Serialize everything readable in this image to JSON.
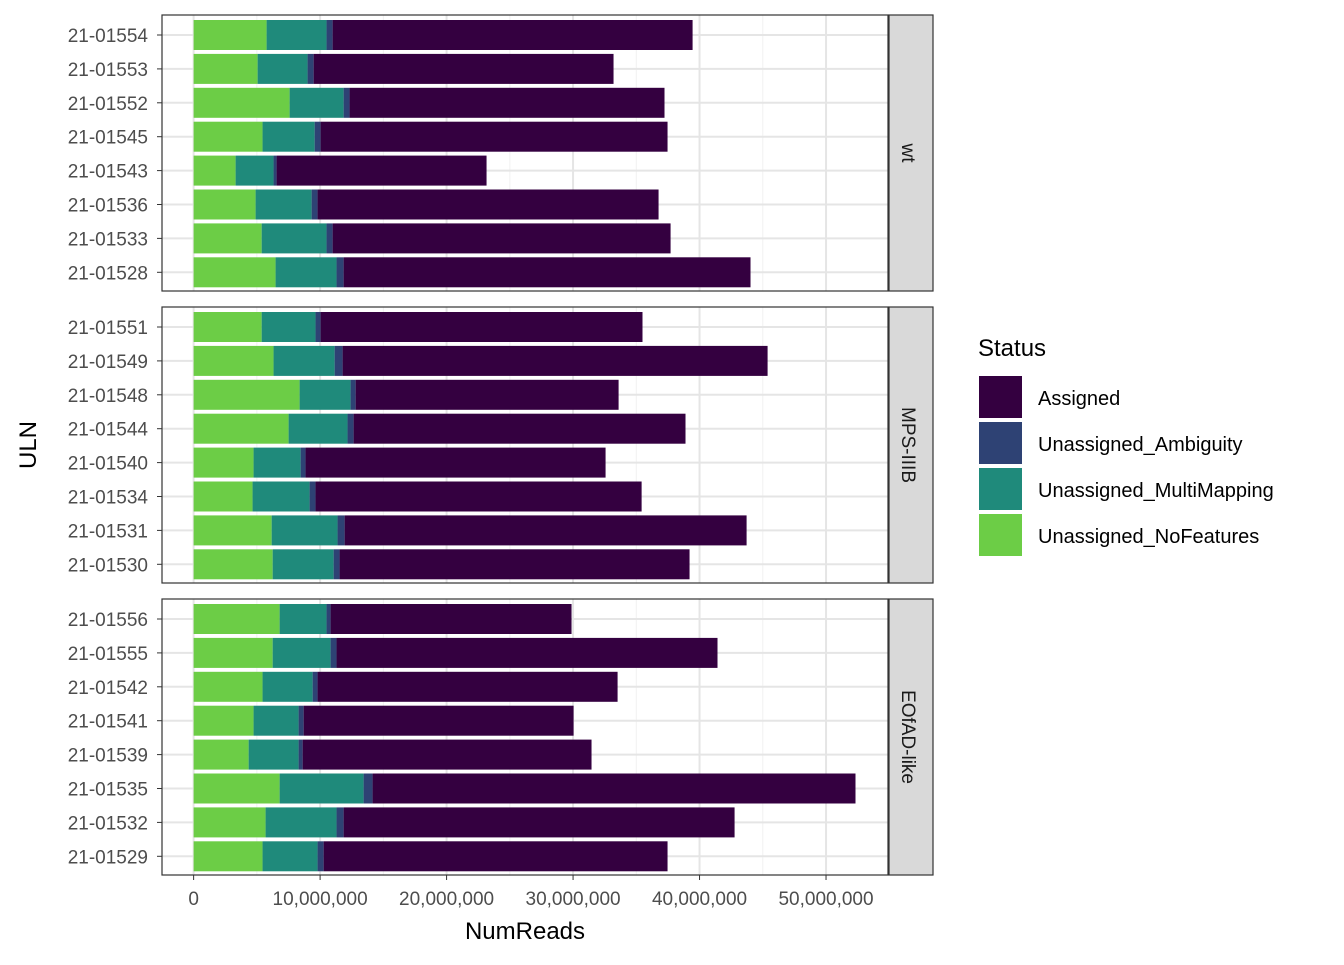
{
  "chart_data": {
    "type": "bar",
    "orientation": "horizontal",
    "stacked": true,
    "xlabel": "NumReads",
    "ylabel": "ULN",
    "xlim": [
      -2500000,
      54900000
    ],
    "xticks": [
      0,
      10000000,
      20000000,
      30000000,
      40000000,
      50000000
    ],
    "xtick_labels": [
      "0",
      "10,000,000",
      "20,000,000",
      "30,000,000",
      "40,000,000",
      "50,000,000"
    ],
    "grid": true,
    "legend": {
      "title": "Status",
      "placement": "right",
      "entries": [
        "Assigned",
        "Unassigned_Ambiguity",
        "Unassigned_MultiMapping",
        "Unassigned_NoFeatures"
      ]
    },
    "colors": {
      "Assigned": "#340040",
      "Unassigned_Ambiguity": "#2E4274",
      "Unassigned_MultiMapping": "#1F8A7B",
      "Unassigned_NoFeatures": "#6CCD46"
    },
    "stack_order": [
      "Unassigned_NoFeatures",
      "Unassigned_MultiMapping",
      "Unassigned_Ambiguity",
      "Assigned"
    ],
    "panels": [
      {
        "label": "wt",
        "rows": [
          {
            "uln": "21-01554",
            "Unassigned_NoFeatures": 5770000,
            "Unassigned_MultiMapping": 4740000,
            "Unassigned_Ambiguity": 480000,
            "Assigned": 28460000
          },
          {
            "uln": "21-01553",
            "Unassigned_NoFeatures": 5060000,
            "Unassigned_MultiMapping": 3950000,
            "Unassigned_Ambiguity": 480000,
            "Assigned": 23710000
          },
          {
            "uln": "21-01552",
            "Unassigned_NoFeatures": 7590000,
            "Unassigned_MultiMapping": 4270000,
            "Unassigned_Ambiguity": 470000,
            "Assigned": 24900000
          },
          {
            "uln": "21-01545",
            "Unassigned_NoFeatures": 5450000,
            "Unassigned_MultiMapping": 4120000,
            "Unassigned_Ambiguity": 470000,
            "Assigned": 27430000
          },
          {
            "uln": "21-01543",
            "Unassigned_NoFeatures": 3320000,
            "Unassigned_MultiMapping": 3000000,
            "Unassigned_Ambiguity": 240000,
            "Assigned": 16600000
          },
          {
            "uln": "21-01536",
            "Unassigned_NoFeatures": 4900000,
            "Unassigned_MultiMapping": 4430000,
            "Unassigned_Ambiguity": 470000,
            "Assigned": 26960000
          },
          {
            "uln": "21-01533",
            "Unassigned_NoFeatures": 5380000,
            "Unassigned_MultiMapping": 5130000,
            "Unassigned_Ambiguity": 480000,
            "Assigned": 26720000
          },
          {
            "uln": "21-01528",
            "Unassigned_NoFeatures": 6480000,
            "Unassigned_MultiMapping": 4820000,
            "Unassigned_Ambiguity": 560000,
            "Assigned": 32170000
          }
        ]
      },
      {
        "label": "MPS-IIIB",
        "rows": [
          {
            "uln": "21-01551",
            "Unassigned_NoFeatures": 5380000,
            "Unassigned_MultiMapping": 4260000,
            "Unassigned_Ambiguity": 400000,
            "Assigned": 25450000
          },
          {
            "uln": "21-01549",
            "Unassigned_NoFeatures": 6320000,
            "Unassigned_MultiMapping": 4830000,
            "Unassigned_Ambiguity": 630000,
            "Assigned": 33600000
          },
          {
            "uln": "21-01548",
            "Unassigned_NoFeatures": 8380000,
            "Unassigned_MultiMapping": 4030000,
            "Unassigned_Ambiguity": 400000,
            "Assigned": 20790000
          },
          {
            "uln": "21-01544",
            "Unassigned_NoFeatures": 7510000,
            "Unassigned_MultiMapping": 4660000,
            "Unassigned_Ambiguity": 480000,
            "Assigned": 26240000
          },
          {
            "uln": "21-01540",
            "Unassigned_NoFeatures": 4740000,
            "Unassigned_MultiMapping": 3720000,
            "Unassigned_Ambiguity": 390000,
            "Assigned": 23720000
          },
          {
            "uln": "21-01534",
            "Unassigned_NoFeatures": 4660000,
            "Unassigned_MultiMapping": 4510000,
            "Unassigned_Ambiguity": 470000,
            "Assigned": 25780000
          },
          {
            "uln": "21-01531",
            "Unassigned_NoFeatures": 6170000,
            "Unassigned_MultiMapping": 5210000,
            "Unassigned_Ambiguity": 560000,
            "Assigned": 31780000
          },
          {
            "uln": "21-01530",
            "Unassigned_NoFeatures": 6250000,
            "Unassigned_MultiMapping": 4820000,
            "Unassigned_Ambiguity": 470000,
            "Assigned": 27670000
          }
        ]
      },
      {
        "label": "EOfAD-like",
        "rows": [
          {
            "uln": "21-01556",
            "Unassigned_NoFeatures": 6800000,
            "Unassigned_MultiMapping": 3710000,
            "Unassigned_Ambiguity": 320000,
            "Assigned": 19050000
          },
          {
            "uln": "21-01555",
            "Unassigned_NoFeatures": 6250000,
            "Unassigned_MultiMapping": 4580000,
            "Unassigned_Ambiguity": 470000,
            "Assigned": 30120000
          },
          {
            "uln": "21-01542",
            "Unassigned_NoFeatures": 5450000,
            "Unassigned_MultiMapping": 3960000,
            "Unassigned_Ambiguity": 390000,
            "Assigned": 23720000
          },
          {
            "uln": "21-01541",
            "Unassigned_NoFeatures": 4740000,
            "Unassigned_MultiMapping": 3560000,
            "Unassigned_Ambiguity": 400000,
            "Assigned": 21340000
          },
          {
            "uln": "21-01539",
            "Unassigned_NoFeatures": 4350000,
            "Unassigned_MultiMapping": 3950000,
            "Unassigned_Ambiguity": 320000,
            "Assigned": 22840000
          },
          {
            "uln": "21-01535",
            "Unassigned_NoFeatures": 6800000,
            "Unassigned_MultiMapping": 6640000,
            "Unassigned_Ambiguity": 710000,
            "Assigned": 38180000
          },
          {
            "uln": "21-01532",
            "Unassigned_NoFeatures": 5690000,
            "Unassigned_MultiMapping": 5610000,
            "Unassigned_Ambiguity": 560000,
            "Assigned": 30910000
          },
          {
            "uln": "21-01529",
            "Unassigned_NoFeatures": 5450000,
            "Unassigned_MultiMapping": 4350000,
            "Unassigned_Ambiguity": 480000,
            "Assigned": 27190000
          }
        ]
      }
    ]
  }
}
